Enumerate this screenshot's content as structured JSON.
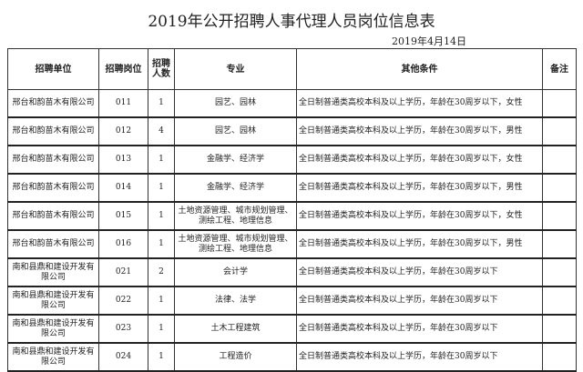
{
  "title": "2019年公开招聘人事代理人员岗位信息表",
  "date": "2019年4月14日",
  "headers": [
    "招聘单位",
    "招聘岗位",
    "招聘人数",
    "专业",
    "其他条件",
    "备注"
  ],
  "rows": [
    [
      "邢台和韵苗木有限公司",
      "011",
      "1",
      "园艺、园林",
      "全日制普通类高校本科及以上学历，年龄在30周岁以下，女性",
      ""
    ],
    [
      "邢台和韵苗木有限公司",
      "012",
      "4",
      "园艺、园林",
      "全日制普通类高校本科及以上学历，年龄在30周岁以下，男性",
      ""
    ],
    [
      "邢台和韵苗木有限公司",
      "013",
      "1",
      "金融学、经济学",
      "全日制普通类高校本科及以上学历，年龄在30周岁以下，女性",
      ""
    ],
    [
      "邢台和韵苗木有限公司",
      "014",
      "1",
      "金融学、经济学",
      "全日制普通类高校本科及以上学历，年龄在30周岁以下，男性",
      ""
    ],
    [
      "邢台和韵苗木有限公司",
      "015",
      "1",
      "土地资源管理、城市规划管理、测绘工程、地理信息",
      "全日制普通类高校本科及以上学历，年龄在30周岁以下，女性",
      ""
    ],
    [
      "邢台和韵苗木有限公司",
      "016",
      "1",
      "土地资源管理、城市规划管理、测绘工程、地理信息",
      "全日制普通类高校本科及以上学历，年龄在30周岁以下，男性",
      ""
    ],
    [
      "南和县鼎和建设开发有限公司",
      "021",
      "2",
      "会计学",
      "全日制普通类高校本科及以上学历，年龄在30周岁以下",
      ""
    ],
    [
      "南和县鼎和建设开发有限公司",
      "022",
      "1",
      "法律、法学",
      "全日制普通类高校本科及以上学历，年龄在30周岁以下",
      ""
    ],
    [
      "南和县鼎和建设开发有限公司",
      "023",
      "1",
      "土木工程建筑",
      "全日制普通类高校本科及以上学历，年龄在30周岁以下",
      ""
    ],
    [
      "南和县鼎和建设开发有限公司",
      "024",
      "1",
      "工程造价",
      "全日制普通类高校本科及以上学历，年龄在30周岁以下",
      ""
    ]
  ]
}
